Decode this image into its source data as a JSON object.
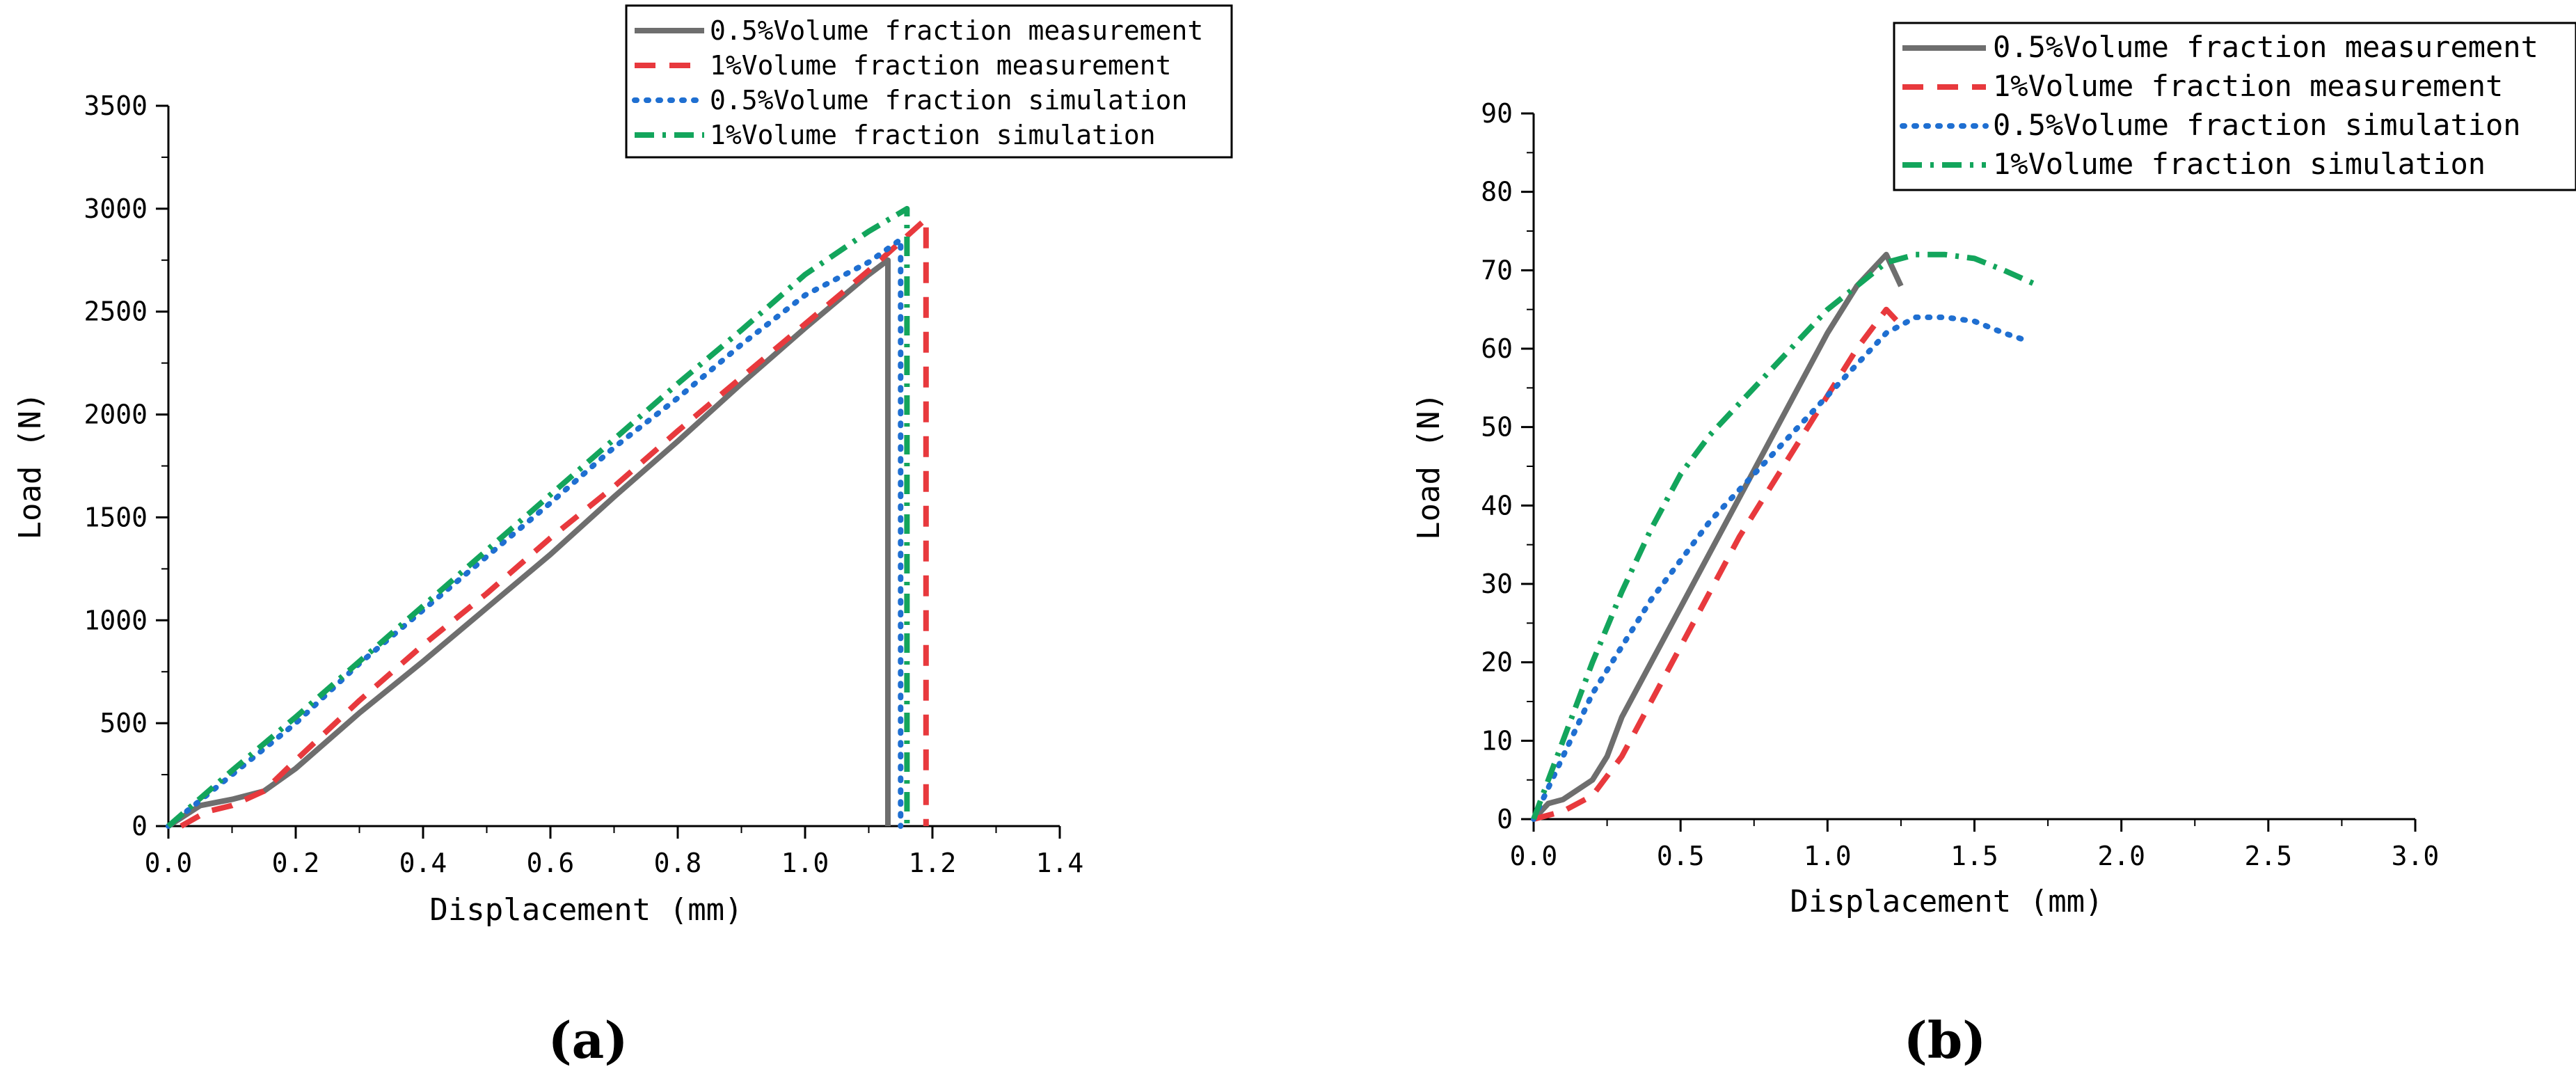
{
  "chart_data": [
    {
      "type": "line",
      "panel_label": "(a)",
      "xlabel": "Displacement (mm)",
      "ylabel": "Load (N)",
      "xlim": [
        0,
        1.4
      ],
      "ylim": [
        0,
        3500
      ],
      "xticks": [
        0.0,
        0.2,
        0.4,
        0.6,
        0.8,
        1.0,
        1.2,
        1.4
      ],
      "xtick_labels": [
        "0.0",
        "0.2",
        "0.4",
        "0.6",
        "0.8",
        "1.0",
        "1.2",
        "1.4"
      ],
      "yticks": [
        0,
        500,
        1000,
        1500,
        2000,
        2500,
        3000,
        3500
      ],
      "ytick_labels": [
        "0",
        "500",
        "1000",
        "1500",
        "2000",
        "2500",
        "3000",
        "3500"
      ],
      "grid": false,
      "legend_position": "top-right",
      "series": [
        {
          "name": "0.5%Volume fraction measurement",
          "color": "#6e6e6e",
          "dash": "solid",
          "points": [
            [
              0,
              0
            ],
            [
              0.05,
              100
            ],
            [
              0.1,
              130
            ],
            [
              0.15,
              170
            ],
            [
              0.2,
              280
            ],
            [
              0.3,
              550
            ],
            [
              0.4,
              800
            ],
            [
              0.5,
              1060
            ],
            [
              0.6,
              1320
            ],
            [
              0.7,
              1600
            ],
            [
              0.8,
              1870
            ],
            [
              0.9,
              2150
            ],
            [
              1.0,
              2420
            ],
            [
              1.1,
              2680
            ],
            [
              1.13,
              2750
            ],
            [
              1.13,
              0
            ]
          ]
        },
        {
          "name": "1%Volume fraction measurement",
          "color": "#e8393d",
          "dash": "long-dash",
          "points": [
            [
              0.02,
              0
            ],
            [
              0.06,
              70
            ],
            [
              0.1,
              100
            ],
            [
              0.15,
              170
            ],
            [
              0.2,
              320
            ],
            [
              0.3,
              610
            ],
            [
              0.4,
              880
            ],
            [
              0.5,
              1130
            ],
            [
              0.6,
              1400
            ],
            [
              0.7,
              1650
            ],
            [
              0.8,
              1920
            ],
            [
              0.9,
              2180
            ],
            [
              1.0,
              2440
            ],
            [
              1.1,
              2700
            ],
            [
              1.19,
              2950
            ],
            [
              1.19,
              0
            ]
          ]
        },
        {
          "name": "0.5%Volume fraction simulation",
          "color": "#1f6fd1",
          "dash": "dotted",
          "points": [
            [
              0,
              0
            ],
            [
              0.1,
              250
            ],
            [
              0.2,
              500
            ],
            [
              0.3,
              790
            ],
            [
              0.4,
              1050
            ],
            [
              0.5,
              1310
            ],
            [
              0.6,
              1570
            ],
            [
              0.7,
              1840
            ],
            [
              0.8,
              2080
            ],
            [
              0.9,
              2340
            ],
            [
              1.0,
              2580
            ],
            [
              1.1,
              2740
            ],
            [
              1.15,
              2850
            ],
            [
              1.15,
              0
            ]
          ]
        },
        {
          "name": "1%Volume fraction simulation",
          "color": "#13a55c",
          "dash": "dash-dot",
          "points": [
            [
              0,
              0
            ],
            [
              0.1,
              270
            ],
            [
              0.2,
              530
            ],
            [
              0.3,
              800
            ],
            [
              0.4,
              1070
            ],
            [
              0.5,
              1340
            ],
            [
              0.6,
              1610
            ],
            [
              0.7,
              1880
            ],
            [
              0.8,
              2150
            ],
            [
              0.9,
              2410
            ],
            [
              1.0,
              2680
            ],
            [
              1.1,
              2890
            ],
            [
              1.16,
              3000
            ],
            [
              1.16,
              0
            ]
          ]
        }
      ]
    },
    {
      "type": "line",
      "panel_label": "(b)",
      "xlabel": "Displacement (mm)",
      "ylabel": "Load (N)",
      "xlim": [
        0,
        3.0
      ],
      "ylim": [
        0,
        90
      ],
      "xticks": [
        0.0,
        0.5,
        1.0,
        1.5,
        2.0,
        2.5,
        3.0
      ],
      "xtick_labels": [
        "0.0",
        "0.5",
        "1.0",
        "1.5",
        "2.0",
        "2.5",
        "3.0"
      ],
      "yticks": [
        0,
        10,
        20,
        30,
        40,
        50,
        60,
        70,
        80,
        90
      ],
      "ytick_labels": [
        "0",
        "10",
        "20",
        "30",
        "40",
        "50",
        "60",
        "70",
        "80",
        "90"
      ],
      "grid": false,
      "legend_position": "top-right",
      "series": [
        {
          "name": "0.5%Volume fraction measurement",
          "color": "#6e6e6e",
          "dash": "solid",
          "points": [
            [
              0,
              0
            ],
            [
              0.05,
              2
            ],
            [
              0.1,
              2.5
            ],
            [
              0.2,
              5
            ],
            [
              0.25,
              8
            ],
            [
              0.3,
              13
            ],
            [
              0.4,
              20
            ],
            [
              0.5,
              27
            ],
            [
              0.6,
              34
            ],
            [
              0.7,
              41
            ],
            [
              0.8,
              48
            ],
            [
              0.9,
              55
            ],
            [
              1.0,
              62
            ],
            [
              1.1,
              68
            ],
            [
              1.2,
              72
            ],
            [
              1.25,
              68
            ]
          ]
        },
        {
          "name": "1%Volume fraction measurement",
          "color": "#e8393d",
          "dash": "long-dash",
          "points": [
            [
              0,
              0
            ],
            [
              0.1,
              1
            ],
            [
              0.2,
              3
            ],
            [
              0.3,
              8
            ],
            [
              0.4,
              15
            ],
            [
              0.5,
              22
            ],
            [
              0.6,
              29
            ],
            [
              0.7,
              36
            ],
            [
              0.8,
              42
            ],
            [
              0.9,
              48
            ],
            [
              1.0,
              54
            ],
            [
              1.1,
              60
            ],
            [
              1.2,
              65
            ],
            [
              1.25,
              63
            ]
          ]
        },
        {
          "name": "0.5%Volume fraction simulation",
          "color": "#1f6fd1",
          "dash": "dotted",
          "points": [
            [
              0,
              0
            ],
            [
              0.1,
              8
            ],
            [
              0.2,
              16
            ],
            [
              0.3,
              22
            ],
            [
              0.4,
              28
            ],
            [
              0.5,
              33
            ],
            [
              0.6,
              38
            ],
            [
              0.7,
              42
            ],
            [
              0.8,
              46
            ],
            [
              0.9,
              50
            ],
            [
              1.0,
              54
            ],
            [
              1.1,
              58
            ],
            [
              1.2,
              62
            ],
            [
              1.3,
              64
            ],
            [
              1.4,
              64
            ],
            [
              1.5,
              63.5
            ],
            [
              1.6,
              62
            ],
            [
              1.68,
              61
            ]
          ]
        },
        {
          "name": "1%Volume fraction simulation",
          "color": "#13a55c",
          "dash": "dash-dot",
          "points": [
            [
              0,
              0
            ],
            [
              0.1,
              10
            ],
            [
              0.2,
              20
            ],
            [
              0.3,
              29
            ],
            [
              0.4,
              37
            ],
            [
              0.5,
              44
            ],
            [
              0.6,
              49
            ],
            [
              0.7,
              53
            ],
            [
              0.8,
              57
            ],
            [
              0.9,
              61
            ],
            [
              1.0,
              65
            ],
            [
              1.1,
              68
            ],
            [
              1.2,
              71
            ],
            [
              1.3,
              72
            ],
            [
              1.4,
              72
            ],
            [
              1.5,
              71.5
            ],
            [
              1.6,
              70
            ],
            [
              1.72,
              68
            ]
          ]
        }
      ]
    }
  ]
}
